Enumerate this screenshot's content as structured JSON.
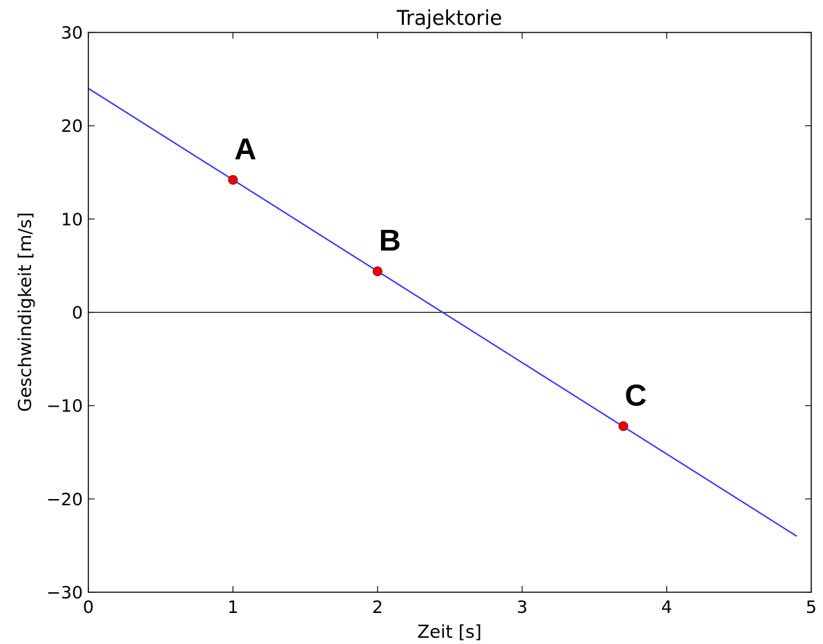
{
  "chart_data": {
    "type": "line",
    "title": "Trajektorie",
    "xlabel": "Zeit [s]",
    "ylabel": "Geschwindigkeit [m/s]",
    "xlim": [
      0,
      5
    ],
    "ylim": [
      -30,
      30
    ],
    "x_ticks": [
      0,
      1,
      2,
      3,
      4,
      5
    ],
    "y_ticks": [
      -30,
      -20,
      -10,
      0,
      10,
      20,
      30
    ],
    "x_tick_labels": [
      "0",
      "1",
      "2",
      "3",
      "4",
      "5"
    ],
    "y_tick_labels": [
      "−30",
      "−20",
      "−10",
      "0",
      "10",
      "20",
      "30"
    ],
    "grid": false,
    "reference_line_y": 0,
    "series": [
      {
        "color": "#3333ff",
        "x": [
          0,
          4.9
        ],
        "y": [
          24,
          -24
        ]
      }
    ],
    "points": [
      {
        "label": "A",
        "x": 1.0,
        "y": 14.2,
        "color": "#ee0000"
      },
      {
        "label": "B",
        "x": 2.0,
        "y": 4.4,
        "color": "#ee0000"
      },
      {
        "label": "C",
        "x": 3.7,
        "y": -12.2,
        "color": "#ee0000"
      }
    ]
  }
}
